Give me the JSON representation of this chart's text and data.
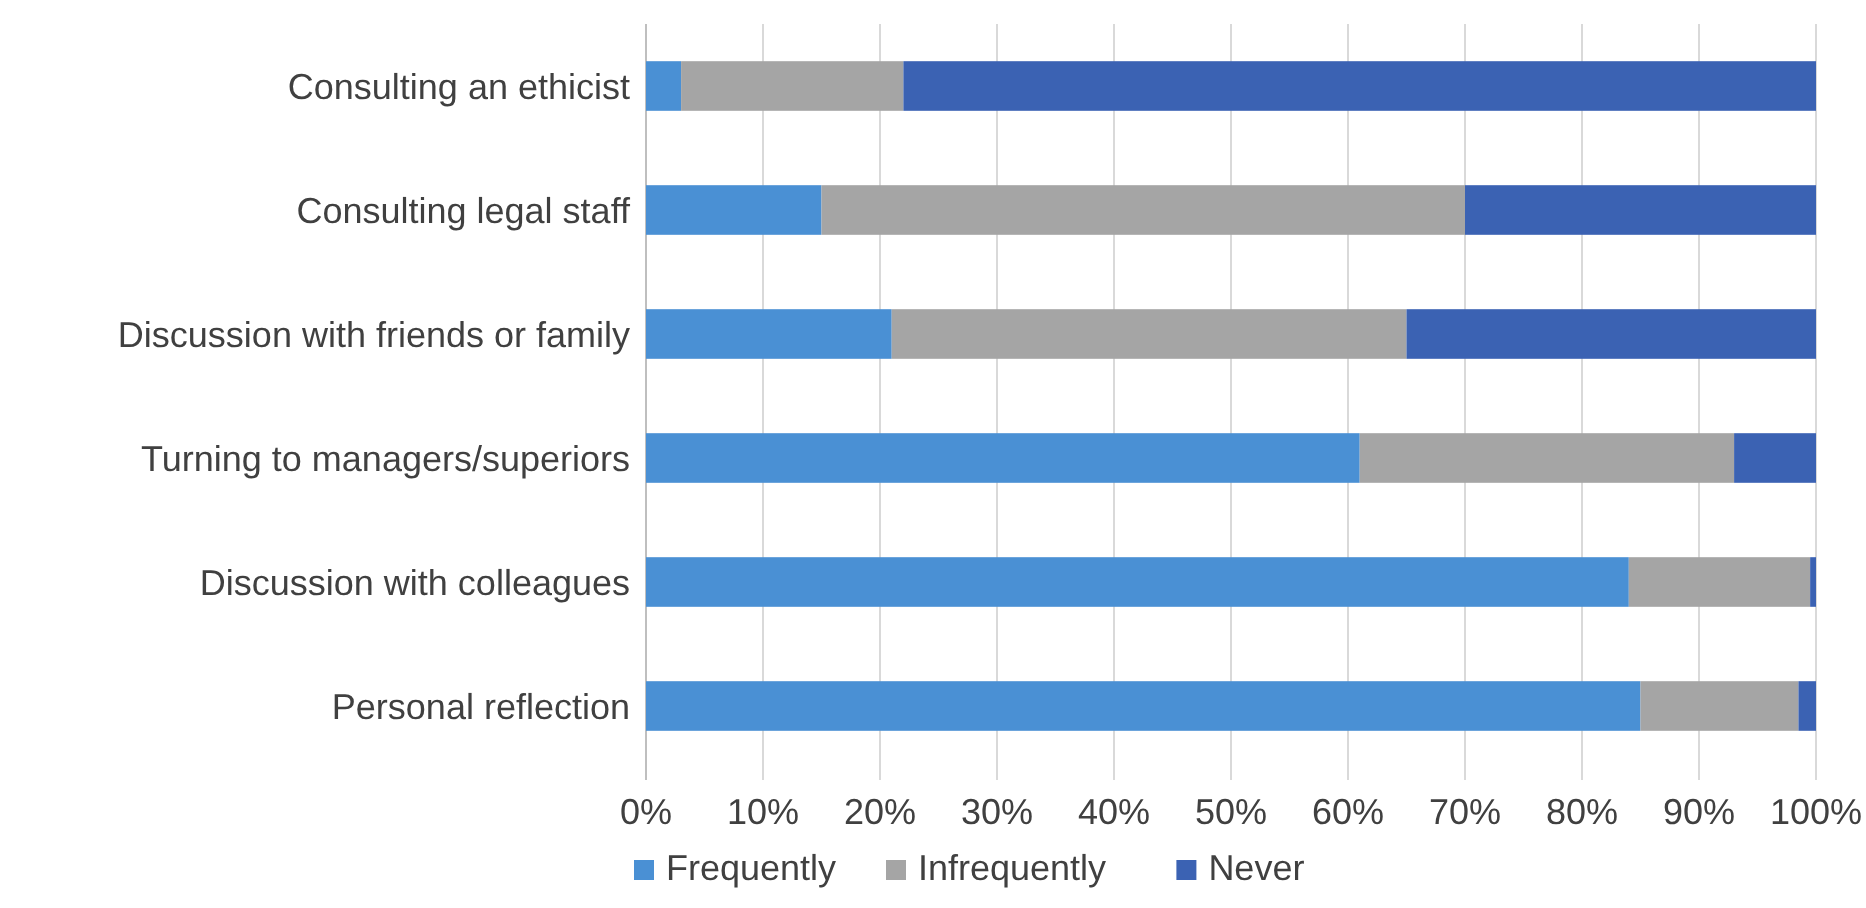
{
  "chart_data": {
    "type": "bar",
    "orientation": "horizontal",
    "stacked": true,
    "categories": [
      "Consulting an ethicist",
      "Consulting legal staff",
      "Discussion with friends or family",
      "Turning to managers/superiors",
      "Discussion with colleagues",
      "Personal reflection"
    ],
    "series": [
      {
        "name": "Frequently",
        "color": "#4a90d4",
        "values": [
          3,
          15,
          21,
          61,
          84,
          85
        ]
      },
      {
        "name": "Infrequently",
        "color": "#a5a5a5",
        "values": [
          19,
          55,
          44,
          32,
          15.5,
          13.5
        ]
      },
      {
        "name": "Never",
        "color": "#3b62b3",
        "values": [
          78,
          30,
          35,
          7,
          0.5,
          1.5
        ]
      }
    ],
    "xlim": [
      0,
      100
    ],
    "xticks": [
      {
        "value": 0,
        "label": "0%"
      },
      {
        "value": 10,
        "label": "10%"
      },
      {
        "value": 20,
        "label": "20%"
      },
      {
        "value": 30,
        "label": "30%"
      },
      {
        "value": 40,
        "label": "40%"
      },
      {
        "value": 50,
        "label": "50%"
      },
      {
        "value": 60,
        "label": "60%"
      },
      {
        "value": 70,
        "label": "70%"
      },
      {
        "value": 80,
        "label": "80%"
      },
      {
        "value": 90,
        "label": "90%"
      },
      {
        "value": 100,
        "label": "100%"
      }
    ],
    "grid": "x",
    "legend": "bottom left"
  }
}
